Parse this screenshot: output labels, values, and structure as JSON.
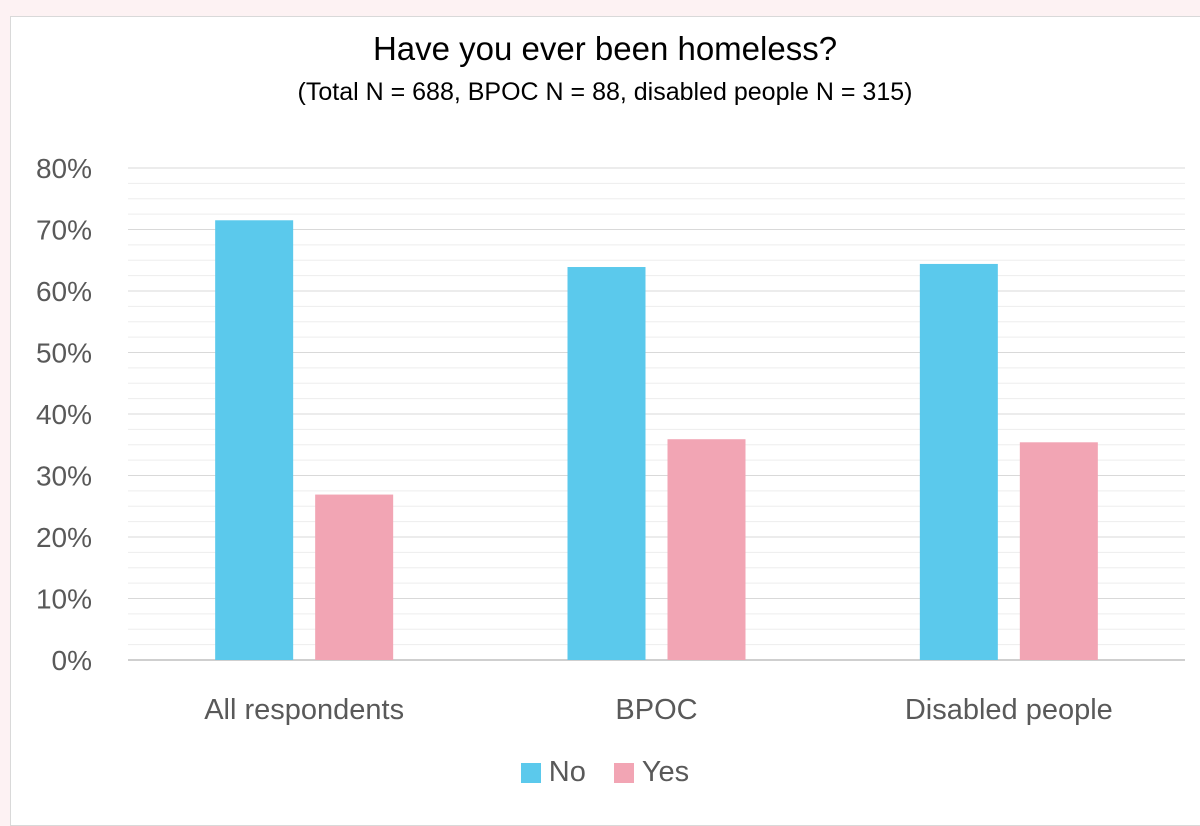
{
  "chart_data": {
    "type": "bar",
    "title": "Have you ever been homeless?",
    "subtitle": "(Total N = 688, BPOC N = 88, disabled people N = 315)",
    "categories": [
      "All respondents",
      "BPOC",
      "Disabled people"
    ],
    "series": [
      {
        "name": "No",
        "color": "#5bc9ec",
        "values": [
          71.5,
          63.9,
          64.4
        ]
      },
      {
        "name": "Yes",
        "color": "#f2a5b4",
        "values": [
          26.9,
          35.9,
          35.4
        ]
      }
    ],
    "ylim": [
      0,
      80
    ],
    "yticks": [
      "0%",
      "10%",
      "20%",
      "30%",
      "40%",
      "50%",
      "60%",
      "70%",
      "80%"
    ],
    "grid": true,
    "legend_position": "bottom"
  }
}
